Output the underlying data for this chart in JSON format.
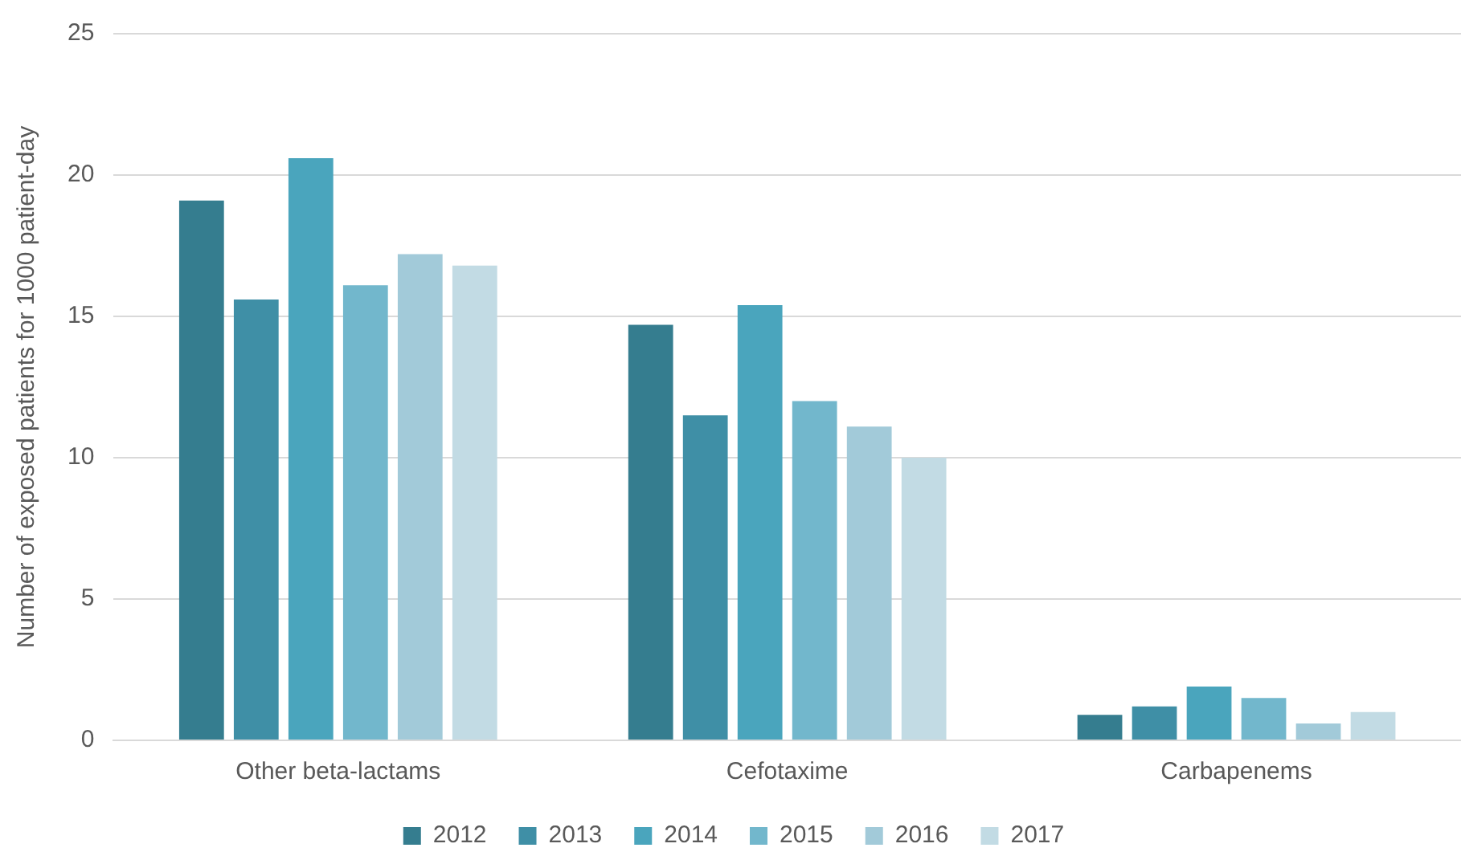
{
  "chart_data": {
    "type": "bar",
    "ylabel": "Number of exposed patients for 1000 patient-day",
    "categories": [
      "Other beta-lactams",
      "Cefotaxime",
      "Carbapenems"
    ],
    "series": [
      {
        "name": "2012",
        "color": "#357d8f",
        "values": [
          19.1,
          14.7,
          0.9
        ]
      },
      {
        "name": "2013",
        "color": "#3f8fa6",
        "values": [
          15.6,
          11.5,
          1.2
        ]
      },
      {
        "name": "2014",
        "color": "#4aa5bd",
        "values": [
          20.6,
          15.4,
          1.9
        ]
      },
      {
        "name": "2015",
        "color": "#72b7cc",
        "values": [
          16.1,
          12.0,
          1.5
        ]
      },
      {
        "name": "2016",
        "color": "#a2cad9",
        "values": [
          17.2,
          11.1,
          0.6
        ]
      },
      {
        "name": "2017",
        "color": "#c2dbe4",
        "values": [
          16.8,
          10.0,
          1.0
        ]
      }
    ],
    "ylim": [
      0,
      25
    ],
    "yticks": [
      0,
      5,
      10,
      15,
      20,
      25
    ],
    "grid": "y",
    "legend": "bottom"
  }
}
